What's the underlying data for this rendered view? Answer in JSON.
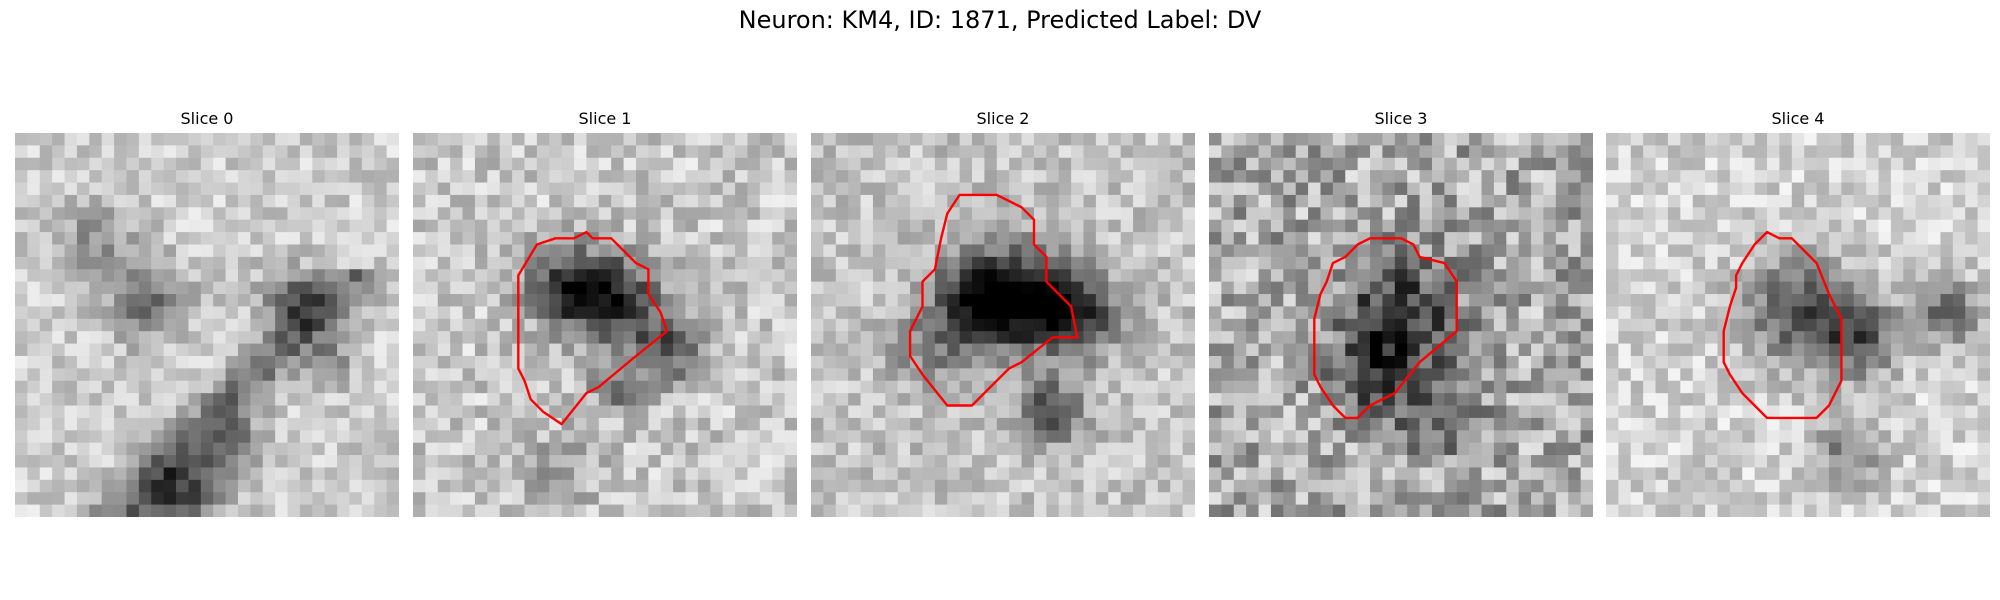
{
  "figure": {
    "title": "Neuron: KM4, ID: 1871, Predicted Label: DV"
  },
  "outline_color": "#ff0000",
  "slices": [
    {
      "title": "Slice 0",
      "has_outline": false
    },
    {
      "title": "Slice 1",
      "has_outline": true
    },
    {
      "title": "Slice 2",
      "has_outline": true
    },
    {
      "title": "Slice 3",
      "has_outline": true
    },
    {
      "title": "Slice 4",
      "has_outline": true
    }
  ]
}
